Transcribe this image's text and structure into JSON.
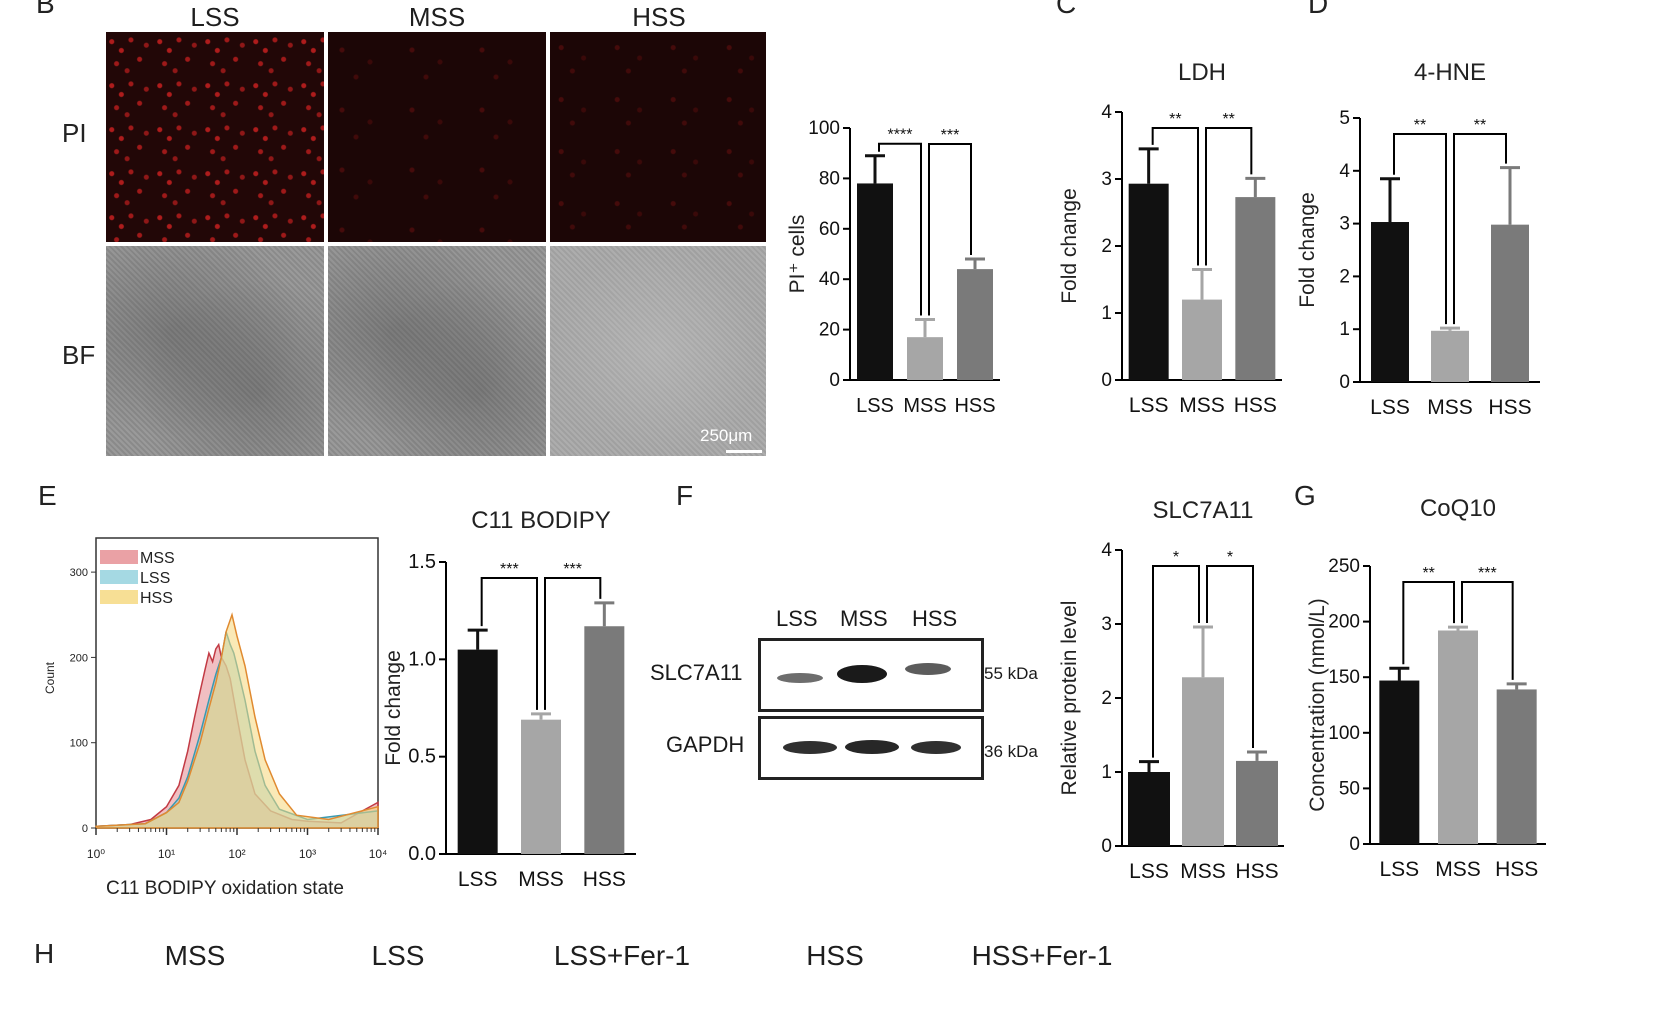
{
  "panel_letters": {
    "b": "B",
    "c": "C",
    "d": "D",
    "e": "E",
    "f": "F",
    "g": "G",
    "h": "H"
  },
  "panel_b": {
    "columns": [
      "LSS",
      "MSS",
      "HSS"
    ],
    "rows": [
      "PI",
      "BF"
    ],
    "scale_bar": "250μm"
  },
  "panel_h": {
    "columns": [
      "MSS",
      "LSS",
      "LSS+Fer-1",
      "HSS",
      "HSS+Fer-1"
    ]
  },
  "western_blot": {
    "lanes": [
      "LSS",
      "MSS",
      "HSS"
    ],
    "proteins": [
      {
        "name": "SLC7A11",
        "size": "55 kDa",
        "intensities": [
          0.45,
          1.0,
          0.55
        ]
      },
      {
        "name": "GAPDH",
        "size": "36 kDa",
        "intensities": [
          0.85,
          0.9,
          0.85
        ]
      }
    ]
  },
  "chart_data": [
    {
      "id": "pi",
      "type": "bar",
      "title": "",
      "ylabel": "PI⁺ cells",
      "ylim": [
        0,
        100
      ],
      "yticks": [
        0,
        20,
        40,
        60,
        80,
        100
      ],
      "categories": [
        "LSS",
        "MSS",
        "HSS"
      ],
      "values": [
        78,
        17,
        44
      ],
      "errors": [
        11,
        7,
        4
      ],
      "colors": [
        "#111111",
        "#a6a6a6",
        "#7a7a7a"
      ],
      "significance": [
        {
          "from": 0,
          "to": 1,
          "label": "****"
        },
        {
          "from": 1,
          "to": 2,
          "label": "***"
        }
      ]
    },
    {
      "id": "ldh",
      "type": "bar",
      "title": "LDH",
      "ylabel": "Fold change",
      "ylim": [
        0,
        4
      ],
      "yticks": [
        0,
        1,
        2,
        3,
        4
      ],
      "categories": [
        "LSS",
        "MSS",
        "HSS"
      ],
      "values": [
        2.93,
        1.2,
        2.73
      ],
      "errors": [
        0.52,
        0.45,
        0.28
      ],
      "colors": [
        "#111111",
        "#a6a6a6",
        "#7a7a7a"
      ],
      "significance": [
        {
          "from": 0,
          "to": 1,
          "label": "**"
        },
        {
          "from": 1,
          "to": 2,
          "label": "**"
        }
      ]
    },
    {
      "id": "hne",
      "type": "bar",
      "title": "4-HNE",
      "ylabel": "Fold change",
      "ylim": [
        0,
        5
      ],
      "yticks": [
        0,
        1,
        2,
        3,
        4,
        5
      ],
      "categories": [
        "LSS",
        "MSS",
        "HSS"
      ],
      "values": [
        3.03,
        0.97,
        2.98
      ],
      "errors": [
        0.82,
        0.05,
        1.08
      ],
      "colors": [
        "#111111",
        "#a6a6a6",
        "#7a7a7a"
      ],
      "significance": [
        {
          "from": 0,
          "to": 1,
          "label": "**"
        },
        {
          "from": 1,
          "to": 2,
          "label": "**"
        }
      ]
    },
    {
      "id": "c11",
      "type": "bar",
      "title": "C11 BODIPY",
      "ylabel": "Fold change",
      "ylim": [
        0,
        1.5
      ],
      "yticks": [
        "0.0",
        "0.5",
        "1.0",
        "1.5"
      ],
      "categories": [
        "LSS",
        "MSS",
        "HSS"
      ],
      "values": [
        1.05,
        0.69,
        1.17
      ],
      "errors": [
        0.1,
        0.03,
        0.12
      ],
      "colors": [
        "#111111",
        "#a6a6a6",
        "#7a7a7a"
      ],
      "significance": [
        {
          "from": 0,
          "to": 1,
          "label": "***"
        },
        {
          "from": 1,
          "to": 2,
          "label": "***"
        }
      ]
    },
    {
      "id": "slc",
      "type": "bar",
      "title": "SLC7A11",
      "ylabel": "Relative protein level",
      "ylim": [
        0,
        4
      ],
      "yticks": [
        0,
        1,
        2,
        3,
        4
      ],
      "categories": [
        "LSS",
        "MSS",
        "HSS"
      ],
      "values": [
        1.0,
        2.28,
        1.15
      ],
      "errors": [
        0.14,
        0.68,
        0.12
      ],
      "colors": [
        "#111111",
        "#a6a6a6",
        "#7a7a7a"
      ],
      "significance": [
        {
          "from": 0,
          "to": 1,
          "label": "*"
        },
        {
          "from": 1,
          "to": 2,
          "label": "*"
        }
      ]
    },
    {
      "id": "coq",
      "type": "bar",
      "title": "CoQ10",
      "ylabel": "Concentration (nmol/L)",
      "ylim": [
        0,
        250
      ],
      "yticks": [
        0,
        50,
        100,
        150,
        200,
        250
      ],
      "categories": [
        "LSS",
        "MSS",
        "HSS"
      ],
      "values": [
        147,
        192,
        139
      ],
      "errors": [
        11,
        3,
        5
      ],
      "colors": [
        "#111111",
        "#a6a6a6",
        "#7a7a7a"
      ],
      "significance": [
        {
          "from": 0,
          "to": 1,
          "label": "**"
        },
        {
          "from": 1,
          "to": 2,
          "label": "***"
        }
      ]
    },
    {
      "id": "flow",
      "type": "area",
      "title": "",
      "xlabel": "C11 BODIPY oxidation state",
      "ylabel": "Count",
      "xscale": "log",
      "xlim": [
        1,
        10000
      ],
      "ylim": [
        0,
        340
      ],
      "xticks": [
        "10⁰",
        "10¹",
        "10²",
        "10³",
        "10⁴"
      ],
      "yticks": [
        0,
        100,
        200,
        300
      ],
      "legend_position": "top-left",
      "series": [
        {
          "name": "MSS",
          "color": "#e58a8f",
          "edge": "#c23a44",
          "points": [
            [
              1,
              2
            ],
            [
              3,
              4
            ],
            [
              6,
              10
            ],
            [
              10,
              25
            ],
            [
              15,
              50
            ],
            [
              20,
              90
            ],
            [
              25,
              130
            ],
            [
              30,
              160
            ],
            [
              35,
              185
            ],
            [
              40,
              205
            ],
            [
              45,
              195
            ],
            [
              50,
              210
            ],
            [
              55,
              215
            ],
            [
              60,
              200
            ],
            [
              70,
              190
            ],
            [
              80,
              175
            ],
            [
              100,
              130
            ],
            [
              130,
              80
            ],
            [
              180,
              40
            ],
            [
              300,
              20
            ],
            [
              600,
              10
            ],
            [
              1000,
              8
            ],
            [
              3000,
              6
            ],
            [
              6000,
              20
            ],
            [
              10000,
              30
            ]
          ]
        },
        {
          "name": "LSS",
          "color": "#8fd0dc",
          "edge": "#3a9ab0",
          "points": [
            [
              1,
              2
            ],
            [
              5,
              5
            ],
            [
              10,
              18
            ],
            [
              15,
              35
            ],
            [
              20,
              60
            ],
            [
              30,
              110
            ],
            [
              40,
              150
            ],
            [
              50,
              180
            ],
            [
              60,
              200
            ],
            [
              70,
              230
            ],
            [
              80,
              215
            ],
            [
              90,
              205
            ],
            [
              100,
              190
            ],
            [
              130,
              150
            ],
            [
              180,
              90
            ],
            [
              250,
              50
            ],
            [
              400,
              22
            ],
            [
              1000,
              10
            ],
            [
              10000,
              20
            ]
          ]
        },
        {
          "name": "HSS",
          "color": "#f5d77a",
          "edge": "#e08a30",
          "points": [
            [
              1,
              2
            ],
            [
              5,
              5
            ],
            [
              10,
              18
            ],
            [
              15,
              30
            ],
            [
              20,
              55
            ],
            [
              30,
              100
            ],
            [
              40,
              140
            ],
            [
              50,
              170
            ],
            [
              60,
              200
            ],
            [
              70,
              230
            ],
            [
              85,
              250
            ],
            [
              100,
              225
            ],
            [
              130,
              190
            ],
            [
              180,
              130
            ],
            [
              250,
              80
            ],
            [
              400,
              40
            ],
            [
              700,
              15
            ],
            [
              2000,
              10
            ],
            [
              10000,
              25
            ]
          ]
        }
      ]
    }
  ]
}
